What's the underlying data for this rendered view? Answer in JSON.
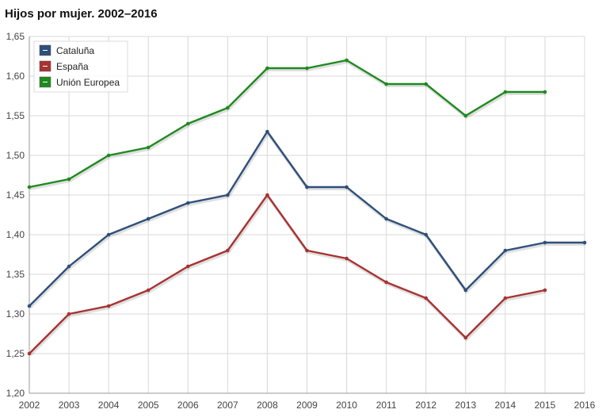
{
  "chart_data": {
    "type": "line",
    "title": "Hijos por mujer. 2002–2016",
    "xlabel": "",
    "ylabel": "",
    "ylim": [
      1.2,
      1.65
    ],
    "yticks": [
      "1,20",
      "1,25",
      "1,30",
      "1,35",
      "1,40",
      "1,45",
      "1,50",
      "1,55",
      "1,60",
      "1,65"
    ],
    "categories": [
      "2002",
      "2003",
      "2004",
      "2005",
      "2006",
      "2007",
      "2008",
      "2009",
      "2010",
      "2011",
      "2012",
      "2013",
      "2014",
      "2015",
      "2016"
    ],
    "grid": true,
    "legend": "top-left",
    "series": [
      {
        "name": "Cataluña",
        "color": "#2f4f7a",
        "values": [
          1.31,
          1.36,
          1.4,
          1.42,
          1.44,
          1.45,
          1.53,
          1.46,
          1.46,
          1.42,
          1.4,
          1.33,
          1.38,
          1.39,
          1.39
        ]
      },
      {
        "name": "España",
        "color": "#a83232",
        "values": [
          1.25,
          1.3,
          1.31,
          1.33,
          1.36,
          1.38,
          1.45,
          1.38,
          1.37,
          1.34,
          1.32,
          1.27,
          1.32,
          1.33,
          null
        ]
      },
      {
        "name": "Unión Europea",
        "color": "#1e8a1e",
        "values": [
          1.46,
          1.47,
          1.5,
          1.51,
          1.54,
          1.56,
          1.61,
          1.61,
          1.62,
          1.59,
          1.59,
          1.55,
          1.58,
          1.58,
          null
        ]
      }
    ]
  }
}
